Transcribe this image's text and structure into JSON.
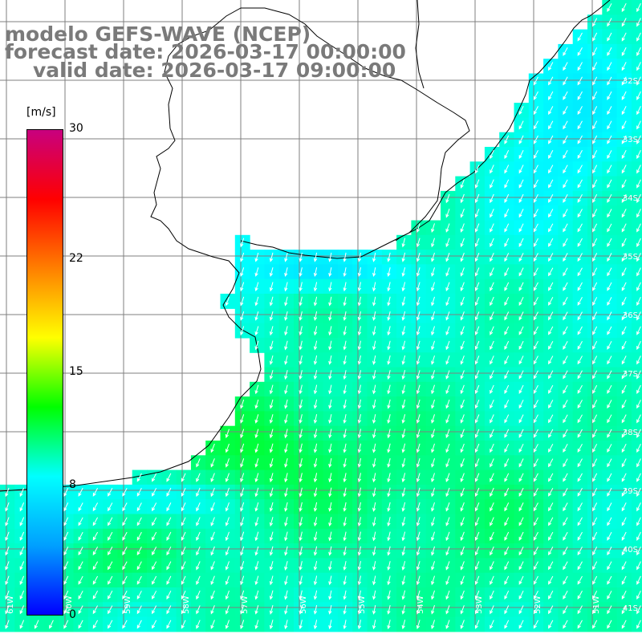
{
  "header": {
    "model": "modelo GEFS-WAVE (NCEP)",
    "forecast": "forecast date: 2026-03-17 00:00:00",
    "valid": "valid date: 2026-03-17 09:00:00"
  },
  "colorbar": {
    "unit": "[m/s]",
    "ticks": [
      {
        "label": "30",
        "value": 30
      },
      {
        "label": "22",
        "value": 22
      },
      {
        "label": "15",
        "value": 15
      },
      {
        "label": "8",
        "value": 8
      },
      {
        "label": "0",
        "value": 0
      }
    ],
    "stops": [
      "#0000ff",
      "#00a0ff",
      "#00ffff",
      "#00ff00",
      "#ffff00",
      "#ff7f00",
      "#ff0000",
      "#c8007f"
    ]
  },
  "lat_labels": [
    "32S",
    "33S",
    "34S",
    "35S",
    "36S",
    "37S",
    "38S",
    "39S",
    "40S",
    "41S"
  ],
  "lon_labels": [
    "61W",
    "60W",
    "59W",
    "58W",
    "57W",
    "56W",
    "55W",
    "54W",
    "53W",
    "52W",
    "51W"
  ],
  "colors": {
    "land": "#ffffff",
    "grid": "#7f7f7f",
    "coast": "#000000",
    "arrow": "#ffffff",
    "header": "#7a7a7a"
  }
}
